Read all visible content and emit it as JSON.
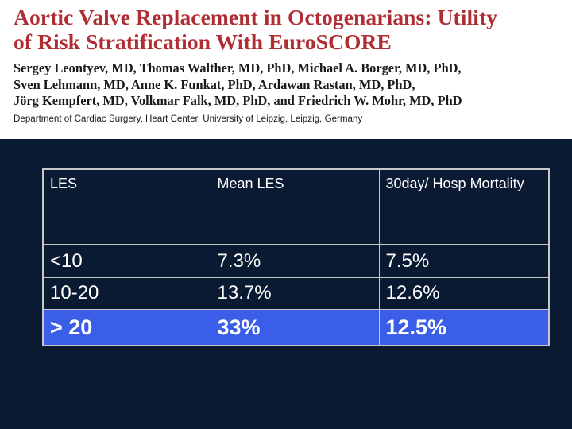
{
  "header": {
    "title_line1": "Aortic Valve Replacement in Octogenarians: Utility",
    "title_line2": "of Risk Stratification With EuroSCORE",
    "authors_line1": "Sergey Leontyev, MD, Thomas Walther, MD, PhD, Michael A. Borger, MD, PhD,",
    "authors_line2": "Sven Lehmann, MD, Anne K. Funkat, PhD, Ardawan Rastan, MD, PhD,",
    "authors_line3": "Jörg Kempfert, MD, Volkmar Falk, MD, PhD, and Friedrich W. Mohr, MD, PhD",
    "affiliation": "Department of Cardiac Surgery, Heart Center, University of Leipzig, Leipzig, Germany"
  },
  "table": {
    "headers": [
      "LES",
      "Mean LES",
      "30day/ Hosp Mortality"
    ],
    "rows": [
      [
        "<10",
        "7.3%",
        "7.5%"
      ],
      [
        "10-20",
        "13.7%",
        "12.6%"
      ],
      [
        "> 20",
        "33%",
        "12.5%"
      ]
    ]
  },
  "colors": {
    "background": "#0b1a33",
    "title": "#b12d34",
    "highlight_row": "#3a5ee8",
    "grid": "#c8c8c8"
  }
}
